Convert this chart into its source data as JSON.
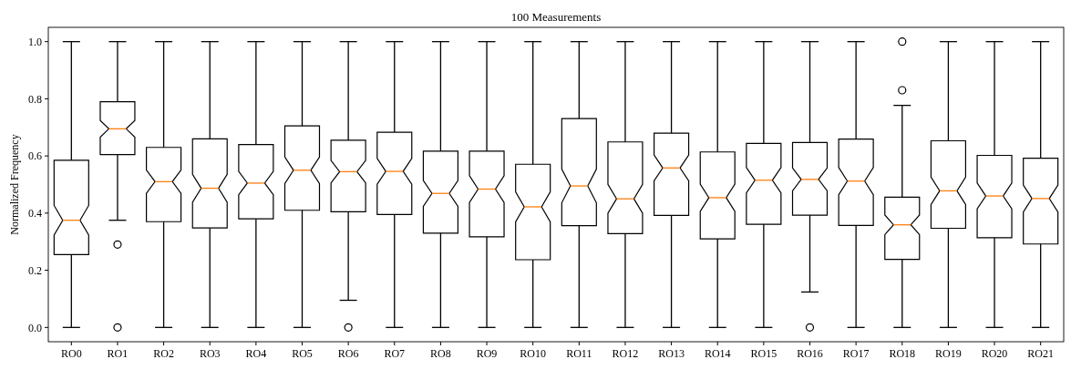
{
  "chart_data": {
    "type": "box",
    "title": "100 Measurements",
    "ylabel": "Normalized Frequency",
    "categories": [
      "RO0",
      "RO1",
      "RO2",
      "RO3",
      "RO4",
      "RO5",
      "RO6",
      "RO7",
      "RO8",
      "RO9",
      "RO10",
      "RO11",
      "RO12",
      "RO13",
      "RO14",
      "RO15",
      "RO16",
      "RO17",
      "RO18",
      "RO19",
      "RO20",
      "RO21"
    ],
    "ylim": [
      -0.05,
      1.05
    ],
    "yticks": [
      {
        "value": 0,
        "label": "0.0"
      },
      {
        "value": 0.2,
        "label": "0.2"
      },
      {
        "value": 0.4,
        "label": "0.4"
      },
      {
        "value": 0.6,
        "label": "0.6"
      },
      {
        "value": 0.8,
        "label": "0.8"
      },
      {
        "value": 1,
        "label": "1.0"
      }
    ],
    "boxes": [
      {
        "low": 0,
        "q1": 0.255,
        "median": 0.375,
        "q3": 0.585,
        "high": 1
      },
      {
        "low": 0.375,
        "q1": 0.605,
        "median": 0.695,
        "q3": 0.79,
        "high": 1,
        "outliers": [
          0.29,
          0
        ]
      },
      {
        "low": 0,
        "q1": 0.37,
        "median": 0.51,
        "q3": 0.63,
        "high": 1
      },
      {
        "low": 0,
        "q1": 0.348,
        "median": 0.487,
        "q3": 0.66,
        "high": 1
      },
      {
        "low": 0,
        "q1": 0.38,
        "median": 0.505,
        "q3": 0.64,
        "high": 1
      },
      {
        "low": 0,
        "q1": 0.41,
        "median": 0.55,
        "q3": 0.705,
        "high": 1
      },
      {
        "low": 0.095,
        "q1": 0.405,
        "median": 0.545,
        "q3": 0.655,
        "high": 1,
        "outliers": [
          0
        ]
      },
      {
        "low": 0,
        "q1": 0.395,
        "median": 0.546,
        "q3": 0.683,
        "high": 1
      },
      {
        "low": 0,
        "q1": 0.33,
        "median": 0.469,
        "q3": 0.617,
        "high": 1
      },
      {
        "low": 0,
        "q1": 0.317,
        "median": 0.484,
        "q3": 0.617,
        "high": 1
      },
      {
        "low": 0,
        "q1": 0.237,
        "median": 0.422,
        "q3": 0.571,
        "high": 1
      },
      {
        "low": 0,
        "q1": 0.356,
        "median": 0.495,
        "q3": 0.731,
        "high": 1
      },
      {
        "low": 0,
        "q1": 0.328,
        "median": 0.45,
        "q3": 0.649,
        "high": 1
      },
      {
        "low": 0,
        "q1": 0.392,
        "median": 0.558,
        "q3": 0.68,
        "high": 1
      },
      {
        "low": 0,
        "q1": 0.31,
        "median": 0.454,
        "q3": 0.614,
        "high": 1
      },
      {
        "low": 0,
        "q1": 0.361,
        "median": 0.515,
        "q3": 0.644,
        "high": 1
      },
      {
        "low": 0.124,
        "q1": 0.393,
        "median": 0.518,
        "q3": 0.647,
        "high": 1,
        "outliers": [
          0
        ]
      },
      {
        "low": 0,
        "q1": 0.357,
        "median": 0.512,
        "q3": 0.659,
        "high": 1
      },
      {
        "low": 0,
        "q1": 0.238,
        "median": 0.359,
        "q3": 0.456,
        "high": 0.777,
        "outliers": [
          0.83,
          1
        ]
      },
      {
        "low": 0,
        "q1": 0.347,
        "median": 0.478,
        "q3": 0.653,
        "high": 1
      },
      {
        "low": 0,
        "q1": 0.314,
        "median": 0.46,
        "q3": 0.602,
        "high": 1
      },
      {
        "low": 0,
        "q1": 0.292,
        "median": 0.451,
        "q3": 0.592,
        "high": 1
      }
    ]
  }
}
